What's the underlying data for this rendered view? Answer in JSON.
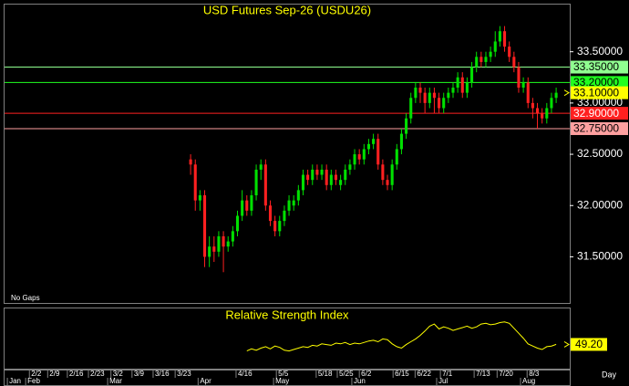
{
  "chart_data": {
    "type": "candlestick",
    "title": "USD Futures Sep-26 (USDU26)",
    "note": "No Gaps",
    "up_color": "#00e000",
    "down_color": "#ff2020",
    "candles": [
      [
        32.45,
        32.5,
        32.3,
        32.4
      ],
      [
        32.4,
        32.45,
        31.95,
        32.05
      ],
      [
        32.05,
        32.15,
        31.95,
        32.1
      ],
      [
        32.1,
        32.15,
        31.4,
        31.5
      ],
      [
        31.5,
        31.7,
        31.4,
        31.6
      ],
      [
        31.6,
        31.7,
        31.45,
        31.55
      ],
      [
        31.55,
        31.75,
        31.5,
        31.7
      ],
      [
        31.7,
        31.75,
        31.35,
        31.6
      ],
      [
        31.6,
        31.7,
        31.55,
        31.65
      ],
      [
        31.65,
        31.8,
        31.6,
        31.75
      ],
      [
        31.75,
        31.95,
        31.7,
        31.9
      ],
      [
        31.9,
        32.15,
        31.85,
        32.05
      ],
      [
        32.05,
        32.1,
        31.9,
        31.95
      ],
      [
        31.95,
        32.15,
        31.9,
        32.1
      ],
      [
        32.1,
        32.4,
        32.05,
        32.35
      ],
      [
        32.35,
        32.45,
        32.25,
        32.4
      ],
      [
        32.4,
        32.45,
        31.95,
        32.0
      ],
      [
        32.0,
        32.05,
        31.8,
        31.85
      ],
      [
        31.85,
        31.9,
        31.7,
        31.75
      ],
      [
        31.75,
        31.9,
        31.7,
        31.85
      ],
      [
        31.85,
        32.0,
        31.8,
        31.95
      ],
      [
        31.95,
        32.1,
        31.9,
        32.05
      ],
      [
        32.0,
        32.1,
        31.95,
        32.05
      ],
      [
        32.05,
        32.2,
        32.0,
        32.15
      ],
      [
        32.15,
        32.35,
        32.1,
        32.3
      ],
      [
        32.3,
        32.35,
        32.2,
        32.25
      ],
      [
        32.25,
        32.4,
        32.2,
        32.35
      ],
      [
        32.35,
        32.4,
        32.25,
        32.3
      ],
      [
        32.3,
        32.4,
        32.25,
        32.35
      ],
      [
        32.35,
        32.4,
        32.15,
        32.2
      ],
      [
        32.2,
        32.35,
        32.15,
        32.3
      ],
      [
        32.3,
        32.35,
        32.2,
        32.25
      ],
      [
        32.2,
        32.3,
        32.15,
        32.25
      ],
      [
        32.25,
        32.4,
        32.2,
        32.35
      ],
      [
        32.35,
        32.45,
        32.3,
        32.4
      ],
      [
        32.4,
        32.55,
        32.35,
        32.5
      ],
      [
        32.5,
        32.55,
        32.4,
        32.45
      ],
      [
        32.45,
        32.6,
        32.4,
        32.55
      ],
      [
        32.55,
        32.65,
        32.5,
        32.6
      ],
      [
        32.6,
        32.7,
        32.55,
        32.65
      ],
      [
        32.65,
        32.7,
        32.35,
        32.4
      ],
      [
        32.4,
        32.45,
        32.2,
        32.25
      ],
      [
        32.25,
        32.3,
        32.15,
        32.2
      ],
      [
        32.2,
        32.45,
        32.15,
        32.4
      ],
      [
        32.4,
        32.6,
        32.35,
        32.55
      ],
      [
        32.55,
        32.75,
        32.5,
        32.7
      ],
      [
        32.7,
        32.9,
        32.65,
        32.85
      ],
      [
        32.85,
        33.1,
        32.8,
        33.05
      ],
      [
        33.05,
        33.2,
        33.0,
        33.15
      ],
      [
        33.15,
        33.2,
        33.0,
        33.1
      ],
      [
        33.1,
        33.15,
        32.9,
        33.0
      ],
      [
        33.0,
        33.15,
        32.95,
        33.1
      ],
      [
        33.1,
        33.15,
        32.9,
        33.05
      ],
      [
        33.05,
        33.1,
        32.9,
        32.95
      ],
      [
        32.95,
        33.1,
        32.9,
        33.05
      ],
      [
        33.05,
        33.15,
        33.0,
        33.1
      ],
      [
        33.1,
        33.2,
        33.05,
        33.15
      ],
      [
        33.15,
        33.3,
        33.1,
        33.25
      ],
      [
        33.25,
        33.3,
        33.05,
        33.1
      ],
      [
        33.1,
        33.25,
        33.05,
        33.2
      ],
      [
        33.2,
        33.4,
        33.15,
        33.35
      ],
      [
        33.35,
        33.5,
        33.3,
        33.45
      ],
      [
        33.45,
        33.5,
        33.35,
        33.4
      ],
      [
        33.4,
        33.5,
        33.35,
        33.45
      ],
      [
        33.45,
        33.55,
        33.4,
        33.5
      ],
      [
        33.5,
        33.7,
        33.45,
        33.6
      ],
      [
        33.6,
        33.75,
        33.55,
        33.7
      ],
      [
        33.7,
        33.75,
        33.5,
        33.55
      ],
      [
        33.55,
        33.6,
        33.4,
        33.45
      ],
      [
        33.45,
        33.5,
        33.3,
        33.35
      ],
      [
        33.35,
        33.4,
        33.1,
        33.15
      ],
      [
        33.15,
        33.25,
        33.1,
        33.2
      ],
      [
        33.2,
        33.25,
        32.95,
        33.0
      ],
      [
        33.0,
        33.05,
        32.85,
        32.95
      ],
      [
        32.95,
        33.0,
        32.75,
        32.9
      ],
      [
        32.9,
        32.95,
        32.8,
        32.85
      ],
      [
        32.85,
        33.0,
        32.8,
        32.95
      ],
      [
        32.95,
        33.1,
        32.9,
        33.05
      ],
      [
        33.05,
        33.15,
        33.0,
        33.1
      ]
    ],
    "ylim": [
      31.05,
      33.96
    ],
    "yticks": [
      {
        "value": 31.5,
        "label": "31.50000"
      },
      {
        "value": 32.0,
        "label": "32.00000"
      },
      {
        "value": 32.5,
        "label": "32.50000"
      },
      {
        "value": 33.0,
        "label": "33.00000"
      },
      {
        "value": 33.5,
        "label": "33.50000"
      }
    ],
    "levels": [
      {
        "value": 33.35,
        "label": "33.35000",
        "color": "#90ff90"
      },
      {
        "value": 33.2,
        "label": "33.20000",
        "color": "#20ff20"
      },
      {
        "value": 32.9,
        "label": "32.90000",
        "color": "#ff2020"
      },
      {
        "value": 32.75,
        "label": "32.75000",
        "color": "#ffa0a0"
      }
    ],
    "last_price": {
      "value": 33.1,
      "label": "33.10000",
      "color": "#ffff00"
    },
    "xlim": [
      -39.7,
      80.9
    ],
    "xticks": [
      {
        "value": -34.4,
        "label": "2/2"
      },
      {
        "value": -30.5,
        "label": "2/9"
      },
      {
        "value": -26.3,
        "label": "2/16"
      },
      {
        "value": -21.8,
        "label": "2/23"
      },
      {
        "value": -17,
        "label": "3/2"
      },
      {
        "value": -12.5,
        "label": "3/9"
      },
      {
        "value": -8,
        "label": "3/16"
      },
      {
        "value": -3.3,
        "label": "3/23"
      },
      {
        "value": 9.7,
        "label": "4/16"
      },
      {
        "value": 18.3,
        "label": "5/5"
      },
      {
        "value": 26.8,
        "label": "5/18"
      },
      {
        "value": 31.3,
        "label": "5/25"
      },
      {
        "value": 36,
        "label": "6/2"
      },
      {
        "value": 43.2,
        "label": "6/15"
      },
      {
        "value": 47.9,
        "label": "6/22"
      },
      {
        "value": 53.3,
        "label": "7/1"
      },
      {
        "value": 60.5,
        "label": "7/13"
      },
      {
        "value": 65.4,
        "label": "7/20"
      },
      {
        "value": 71.8,
        "label": "8/3"
      }
    ],
    "month_ticks": [
      {
        "value": -39.1,
        "label": "Jan"
      },
      {
        "value": -35.2,
        "label": "Feb"
      },
      {
        "value": -17.7,
        "label": "Mar"
      },
      {
        "value": 1.6,
        "label": "Apr"
      },
      {
        "value": 17.7,
        "label": "May"
      },
      {
        "value": 34.4,
        "label": "Jun"
      },
      {
        "value": 52.5,
        "label": "Jul"
      },
      {
        "value": 70.4,
        "label": "Aug"
      }
    ],
    "x_unit": "Day",
    "rsi": {
      "title": "Relative Strength Index",
      "color": "#ffff00",
      "ylim": [
        15,
        100
      ],
      "yticks": [
        {
          "value": 49.2,
          "label": "49.20"
        }
      ],
      "values": [
        null,
        null,
        null,
        null,
        null,
        null,
        null,
        null,
        null,
        null,
        null,
        null,
        40,
        43,
        41,
        44,
        46,
        43,
        47,
        45,
        41,
        40,
        42,
        44,
        46,
        45,
        48,
        47,
        50,
        49,
        48,
        51,
        50,
        52,
        49,
        51,
        50,
        52,
        54,
        55,
        53,
        57,
        56,
        50,
        46,
        44,
        49,
        53,
        57,
        62,
        68,
        75,
        78,
        71,
        74,
        72,
        69,
        71,
        73,
        75,
        72,
        74,
        78,
        79,
        77,
        78,
        80,
        81,
        79,
        72,
        65,
        58,
        50,
        47,
        44,
        42,
        46,
        47,
        49.2
      ]
    }
  }
}
